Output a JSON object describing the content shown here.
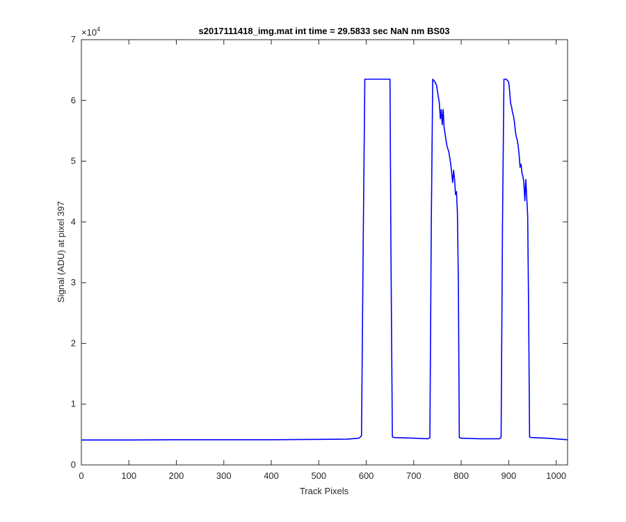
{
  "chart_data": {
    "type": "line",
    "title": "s2017111418_img.mat int time = 29.5833 sec  NaN nm BS03",
    "xlabel": "Track Pixels",
    "ylabel": "Signal (ADU) at pixel 397",
    "xlim": [
      0,
      1024
    ],
    "ylim": [
      0,
      70000
    ],
    "xticks": [
      0,
      100,
      200,
      300,
      400,
      500,
      600,
      700,
      800,
      900,
      1000
    ],
    "yticks": [
      0,
      10000,
      20000,
      30000,
      40000,
      50000,
      60000,
      70000
    ],
    "ytick_labels": [
      "0",
      "1",
      "2",
      "3",
      "4",
      "5",
      "6",
      "7"
    ],
    "y_exponent_base": "×10",
    "y_exponent_power": "4",
    "grid": false,
    "series": [
      {
        "color": "#0000ff",
        "x": [
          0,
          100,
          200,
          300,
          400,
          500,
          560,
          585,
          590,
          594,
          597,
          600,
          605,
          630,
          650,
          652,
          655,
          660,
          700,
          730,
          734,
          737,
          740,
          745,
          748,
          750,
          752,
          754,
          756,
          758,
          760,
          762,
          764,
          766,
          768,
          770,
          772,
          774,
          776,
          778,
          780,
          782,
          784,
          786,
          788,
          790,
          792,
          794,
          796,
          800,
          840,
          880,
          884,
          887,
          890,
          895,
          900,
          902,
          904,
          906,
          908,
          910,
          912,
          914,
          916,
          918,
          920,
          922,
          924,
          926,
          928,
          930,
          932,
          934,
          936,
          938,
          940,
          942,
          944,
          948,
          980,
          1024
        ],
        "y": [
          4100,
          4100,
          4150,
          4150,
          4150,
          4200,
          4250,
          4400,
          4800,
          40000,
          63500,
          63500,
          63500,
          63500,
          63500,
          35000,
          4600,
          4500,
          4400,
          4300,
          4500,
          40000,
          63500,
          63000,
          62500,
          61500,
          60500,
          59500,
          57000,
          58500,
          56000,
          58500,
          55500,
          54500,
          53500,
          52500,
          52000,
          51500,
          50500,
          49500,
          48000,
          46500,
          48500,
          47000,
          44500,
          45000,
          41500,
          30000,
          4500,
          4400,
          4300,
          4300,
          4500,
          40000,
          63500,
          63500,
          63000,
          61500,
          59500,
          59000,
          58000,
          57500,
          56500,
          55000,
          54000,
          53500,
          52500,
          51000,
          49000,
          49500,
          48000,
          47500,
          46500,
          43500,
          47000,
          44000,
          41000,
          25000,
          4600,
          4500,
          4400,
          4150
        ]
      }
    ]
  }
}
